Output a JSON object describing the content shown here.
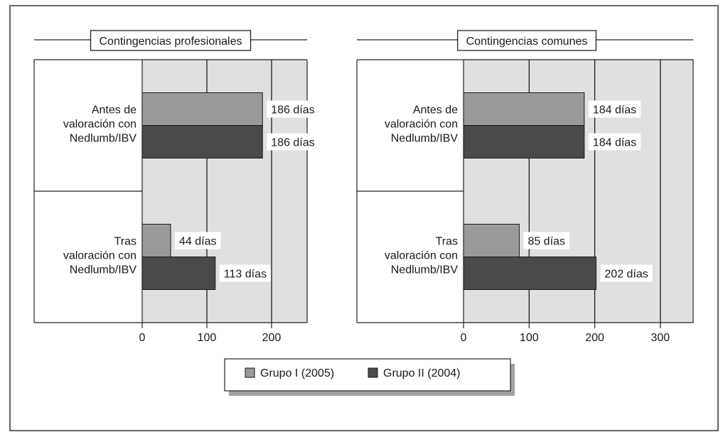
{
  "chart_data": [
    {
      "type": "bar",
      "orientation": "horizontal",
      "title": "Contingencias profesionales",
      "categories": [
        "Antes de valoración con Nedlumb/IBV",
        "Tras valoración con Nedlumb/IBV"
      ],
      "category_lines": [
        [
          "Antes de",
          "valoración con",
          "Nedlumb/IBV"
        ],
        [
          "Tras",
          "valoración con",
          "Nedlumb/IBV"
        ]
      ],
      "series": [
        {
          "name": "Grupo I (2005)",
          "values": [
            186,
            44
          ],
          "labels": [
            "186 días",
            "44 días"
          ],
          "color": "#9a9a9a"
        },
        {
          "name": "Grupo II (2004)",
          "values": [
            186,
            113
          ],
          "labels": [
            "186 días",
            "113 días"
          ],
          "color": "#4a4a4a"
        }
      ],
      "xlim": [
        0,
        255
      ],
      "xticks": [
        0,
        100,
        200
      ],
      "grid": true
    },
    {
      "type": "bar",
      "orientation": "horizontal",
      "title": "Contingencias comunes",
      "categories": [
        "Antes de valoración con Nedlumb/IBV",
        "Tras valoración con Nedlumb/IBV"
      ],
      "category_lines": [
        [
          "Antes de",
          "valoración con",
          "Nedlumb/IBV"
        ],
        [
          "Tras",
          "valoración con",
          "Nedlumb/IBV"
        ]
      ],
      "series": [
        {
          "name": "Grupo I (2005)",
          "values": [
            184,
            85
          ],
          "labels": [
            "184 días",
            "85 días"
          ],
          "color": "#9a9a9a"
        },
        {
          "name": "Grupo II (2004)",
          "values": [
            184,
            202
          ],
          "labels": [
            "184 días",
            "202 días"
          ],
          "color": "#4a4a4a"
        }
      ],
      "xlim": [
        0,
        350
      ],
      "xticks": [
        0,
        100,
        200,
        300
      ],
      "grid": true
    }
  ],
  "legend": {
    "placement": "bottom-center",
    "items": [
      {
        "label": "Grupo I (2005)",
        "color": "#9a9a9a"
      },
      {
        "label": "Grupo II (2004)",
        "color": "#4a4a4a"
      }
    ]
  },
  "colors": {
    "plot_bg": "#e0e0e2",
    "grid": "#1a1a1a"
  }
}
